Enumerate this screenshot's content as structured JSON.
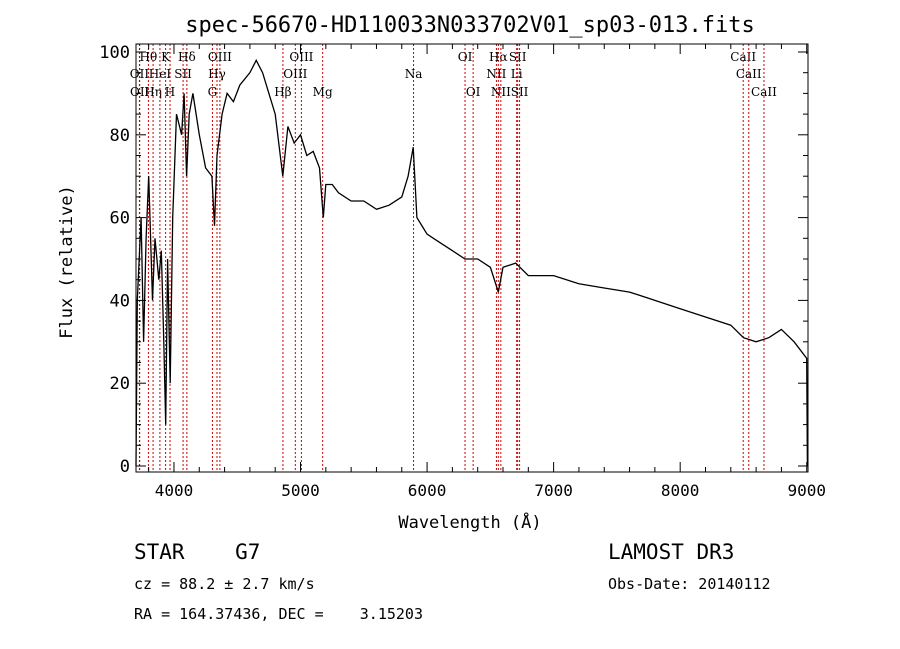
{
  "chart_data": {
    "type": "line",
    "title": "spec-56670-HD110033N033702V01_sp03-013.fits",
    "xlabel": "Wavelength (Å)",
    "ylabel": "Flux (relative)",
    "xlim": [
      3700,
      9010
    ],
    "ylim": [
      0,
      102
    ],
    "xticks": [
      4000,
      5000,
      6000,
      7000,
      8000,
      9000
    ],
    "yticks": [
      0,
      20,
      40,
      60,
      80,
      100
    ],
    "line_color": "#000000",
    "marker_color": "#cc0000",
    "series": [
      {
        "name": "spectrum",
        "x": [
          3700,
          3710,
          3740,
          3760,
          3780,
          3800,
          3830,
          3850,
          3880,
          3900,
          3920,
          3935,
          3950,
          3970,
          3990,
          4020,
          4060,
          4080,
          4100,
          4120,
          4150,
          4200,
          4250,
          4300,
          4320,
          4340,
          4380,
          4420,
          4470,
          4520,
          4600,
          4650,
          4700,
          4750,
          4800,
          4860,
          4900,
          4950,
          5000,
          5050,
          5100,
          5150,
          5180,
          5200,
          5250,
          5300,
          5400,
          5500,
          5600,
          5700,
          5800,
          5850,
          5890,
          5920,
          5960,
          6000,
          6100,
          6200,
          6300,
          6400,
          6500,
          6563,
          6600,
          6700,
          6800,
          7000,
          7200,
          7400,
          7600,
          7800,
          8000,
          8200,
          8400,
          8500,
          8600,
          8700,
          8800,
          8900,
          9000,
          9005
        ],
        "y": [
          0,
          40,
          60,
          30,
          55,
          70,
          40,
          55,
          45,
          52,
          30,
          10,
          50,
          20,
          60,
          85,
          80,
          90,
          70,
          85,
          90,
          80,
          72,
          70,
          58,
          75,
          85,
          90,
          88,
          92,
          95,
          98,
          95,
          90,
          85,
          70,
          82,
          78,
          80,
          75,
          76,
          72,
          60,
          68,
          68,
          66,
          64,
          64,
          62,
          63,
          65,
          70,
          77,
          60,
          58,
          56,
          54,
          52,
          50,
          50,
          48,
          42,
          48,
          49,
          46,
          46,
          44,
          43,
          42,
          40,
          38,
          36,
          34,
          31,
          30,
          31,
          33,
          30,
          26,
          0
        ]
      }
    ],
    "line_markers": [
      {
        "w": 3727,
        "label": "OII",
        "row": 2
      },
      {
        "w": 3729,
        "label": "OII",
        "row": 3
      },
      {
        "w": 3798,
        "label": "Hθ",
        "row": 1
      },
      {
        "w": 3835,
        "label": "Hη",
        "row": 3
      },
      {
        "w": 3889,
        "label": "HeI",
        "row": 2
      },
      {
        "w": 3934,
        "label": "K",
        "row": 1
      },
      {
        "w": 3969,
        "label": "H",
        "row": 3
      },
      {
        "w": 4072,
        "label": "SII",
        "row": 2
      },
      {
        "w": 4102,
        "label": "Hδ",
        "row": 1
      },
      {
        "w": 4304,
        "label": "G",
        "row": 3
      },
      {
        "w": 4340,
        "label": "Hγ",
        "row": 2
      },
      {
        "w": 4363,
        "label": "OIII",
        "row": 1
      },
      {
        "w": 4861,
        "label": "Hβ",
        "row": 3
      },
      {
        "w": 4959,
        "label": "OIII",
        "row": 2
      },
      {
        "w": 5007,
        "label": "OIII",
        "row": 1
      },
      {
        "w": 5175,
        "label": "Mg",
        "row": 3
      },
      {
        "w": 5893,
        "label": "Na",
        "row": 2
      },
      {
        "w": 6300,
        "label": "OI",
        "row": 1
      },
      {
        "w": 6364,
        "label": "OI",
        "row": 3
      },
      {
        "w": 6548,
        "label": "NII",
        "row": 2
      },
      {
        "w": 6563,
        "label": "Hα",
        "row": 1
      },
      {
        "w": 6583,
        "label": "NII",
        "row": 3
      },
      {
        "w": 6708,
        "label": "Li",
        "row": 2
      },
      {
        "w": 6716,
        "label": "SII",
        "row": 1
      },
      {
        "w": 6731,
        "label": "SII",
        "row": 3
      },
      {
        "w": 8498,
        "label": "CaII",
        "row": 1
      },
      {
        "w": 8542,
        "label": "CaII",
        "row": 2
      },
      {
        "w": 8662,
        "label": "CaII",
        "row": 3
      }
    ]
  },
  "footer": {
    "object": "STAR    G7",
    "survey": "LAMOST DR3",
    "cz": "cz = 88.2 ± 2.7 km/s",
    "obs_date": "Obs-Date: 20140112",
    "coords": "RA = 164.37436, DEC =    3.15203"
  }
}
